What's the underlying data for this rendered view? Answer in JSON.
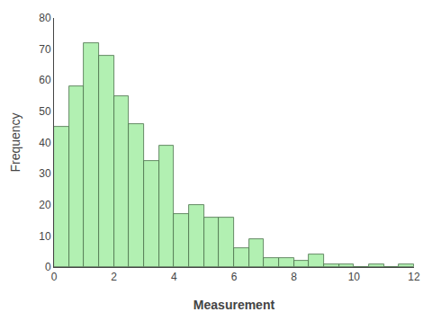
{
  "chart_data": {
    "type": "histogram",
    "bins": [
      0,
      0.5,
      1,
      1.5,
      2,
      2.5,
      3,
      3.5,
      4,
      4.5,
      5,
      5.5,
      6,
      6.5,
      7,
      7.5,
      8,
      8.5,
      9,
      9.5,
      10,
      10.5,
      11,
      11.5,
      12
    ],
    "values": [
      45,
      58,
      72,
      68,
      55,
      46,
      34,
      39,
      17,
      20,
      16,
      16,
      6,
      9,
      3,
      3,
      2,
      4,
      1,
      1,
      0,
      1,
      0,
      1
    ],
    "color": "#b2f0b2",
    "x_label": "Measurement",
    "y_label": "Frequency",
    "xlim": [
      0,
      12
    ],
    "ylim": [
      0,
      80
    ],
    "xticks": [
      0,
      2,
      4,
      6,
      8,
      10,
      12
    ],
    "yticks": [
      0,
      10,
      20,
      30,
      40,
      50,
      60,
      70,
      80
    ],
    "grid": false
  }
}
